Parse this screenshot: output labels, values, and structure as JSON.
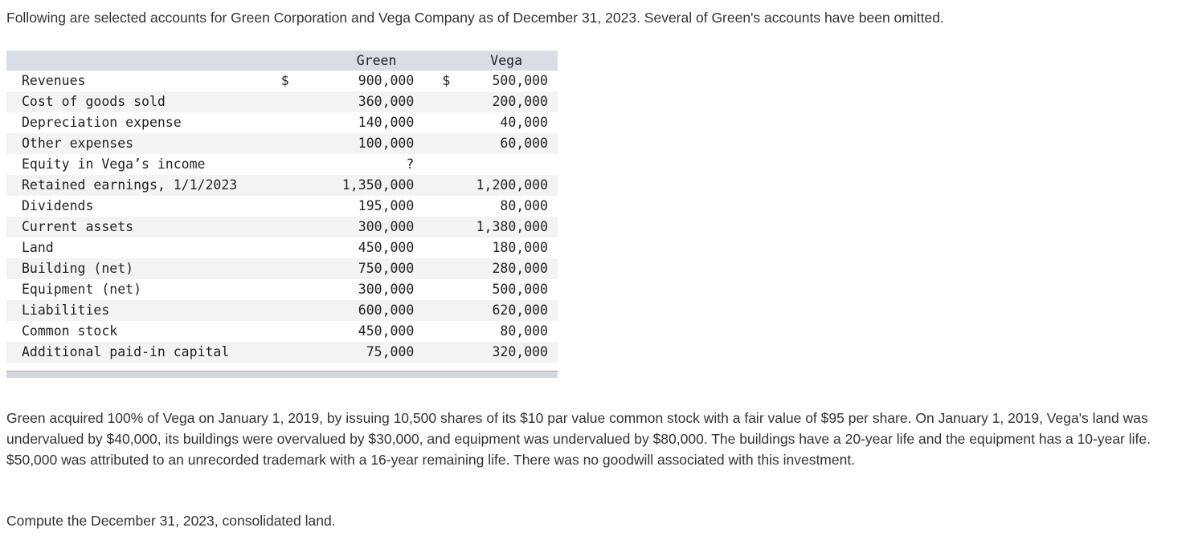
{
  "intro": "Following are selected accounts for Green Corporation and Vega Company as of December 31, 2023. Several of Green's accounts have been omitted.",
  "table": {
    "headers": {
      "label": "",
      "green": "Green",
      "vega": "Vega"
    },
    "currency_symbol": "$",
    "rows": [
      {
        "label": "Revenues",
        "green": "900,000",
        "vega": "500,000"
      },
      {
        "label": "Cost of goods sold",
        "green": "360,000",
        "vega": "200,000"
      },
      {
        "label": "Depreciation expense",
        "green": "140,000",
        "vega": "40,000"
      },
      {
        "label": "Other expenses",
        "green": "100,000",
        "vega": "60,000"
      },
      {
        "label": "Equity in Vega’s income",
        "green": "?",
        "vega": ""
      },
      {
        "label": "Retained earnings, 1/1/2023",
        "green": "1,350,000",
        "vega": "1,200,000"
      },
      {
        "label": "Dividends",
        "green": "195,000",
        "vega": "80,000"
      },
      {
        "label": "Current assets",
        "green": "300,000",
        "vega": "1,380,000"
      },
      {
        "label": "Land",
        "green": "450,000",
        "vega": "180,000"
      },
      {
        "label": "Building (net)",
        "green": "750,000",
        "vega": "280,000"
      },
      {
        "label": "Equipment (net)",
        "green": "300,000",
        "vega": "500,000"
      },
      {
        "label": "Liabilities",
        "green": "600,000",
        "vega": "620,000"
      },
      {
        "label": "Common stock",
        "green": "450,000",
        "vega": "80,000"
      },
      {
        "label": "Additional paid-in capital",
        "green": "75,000",
        "vega": "320,000"
      }
    ]
  },
  "paragraph": "Green acquired 100% of Vega on January 1, 2019, by issuing 10,500 shares of its $10 par value common stock with a fair value of $95 per share. On January 1, 2019, Vega's land was undervalued by $40,000, its buildings were overvalued by $30,000, and equipment was undervalued by $80,000. The buildings have a 20-year life and the equipment has a 10-year life. $50,000 was attributed to an unrecorded trademark with a 16-year remaining life. There was no goodwill associated with this investment.",
  "question": "Compute the December 31, 2023, consolidated land."
}
